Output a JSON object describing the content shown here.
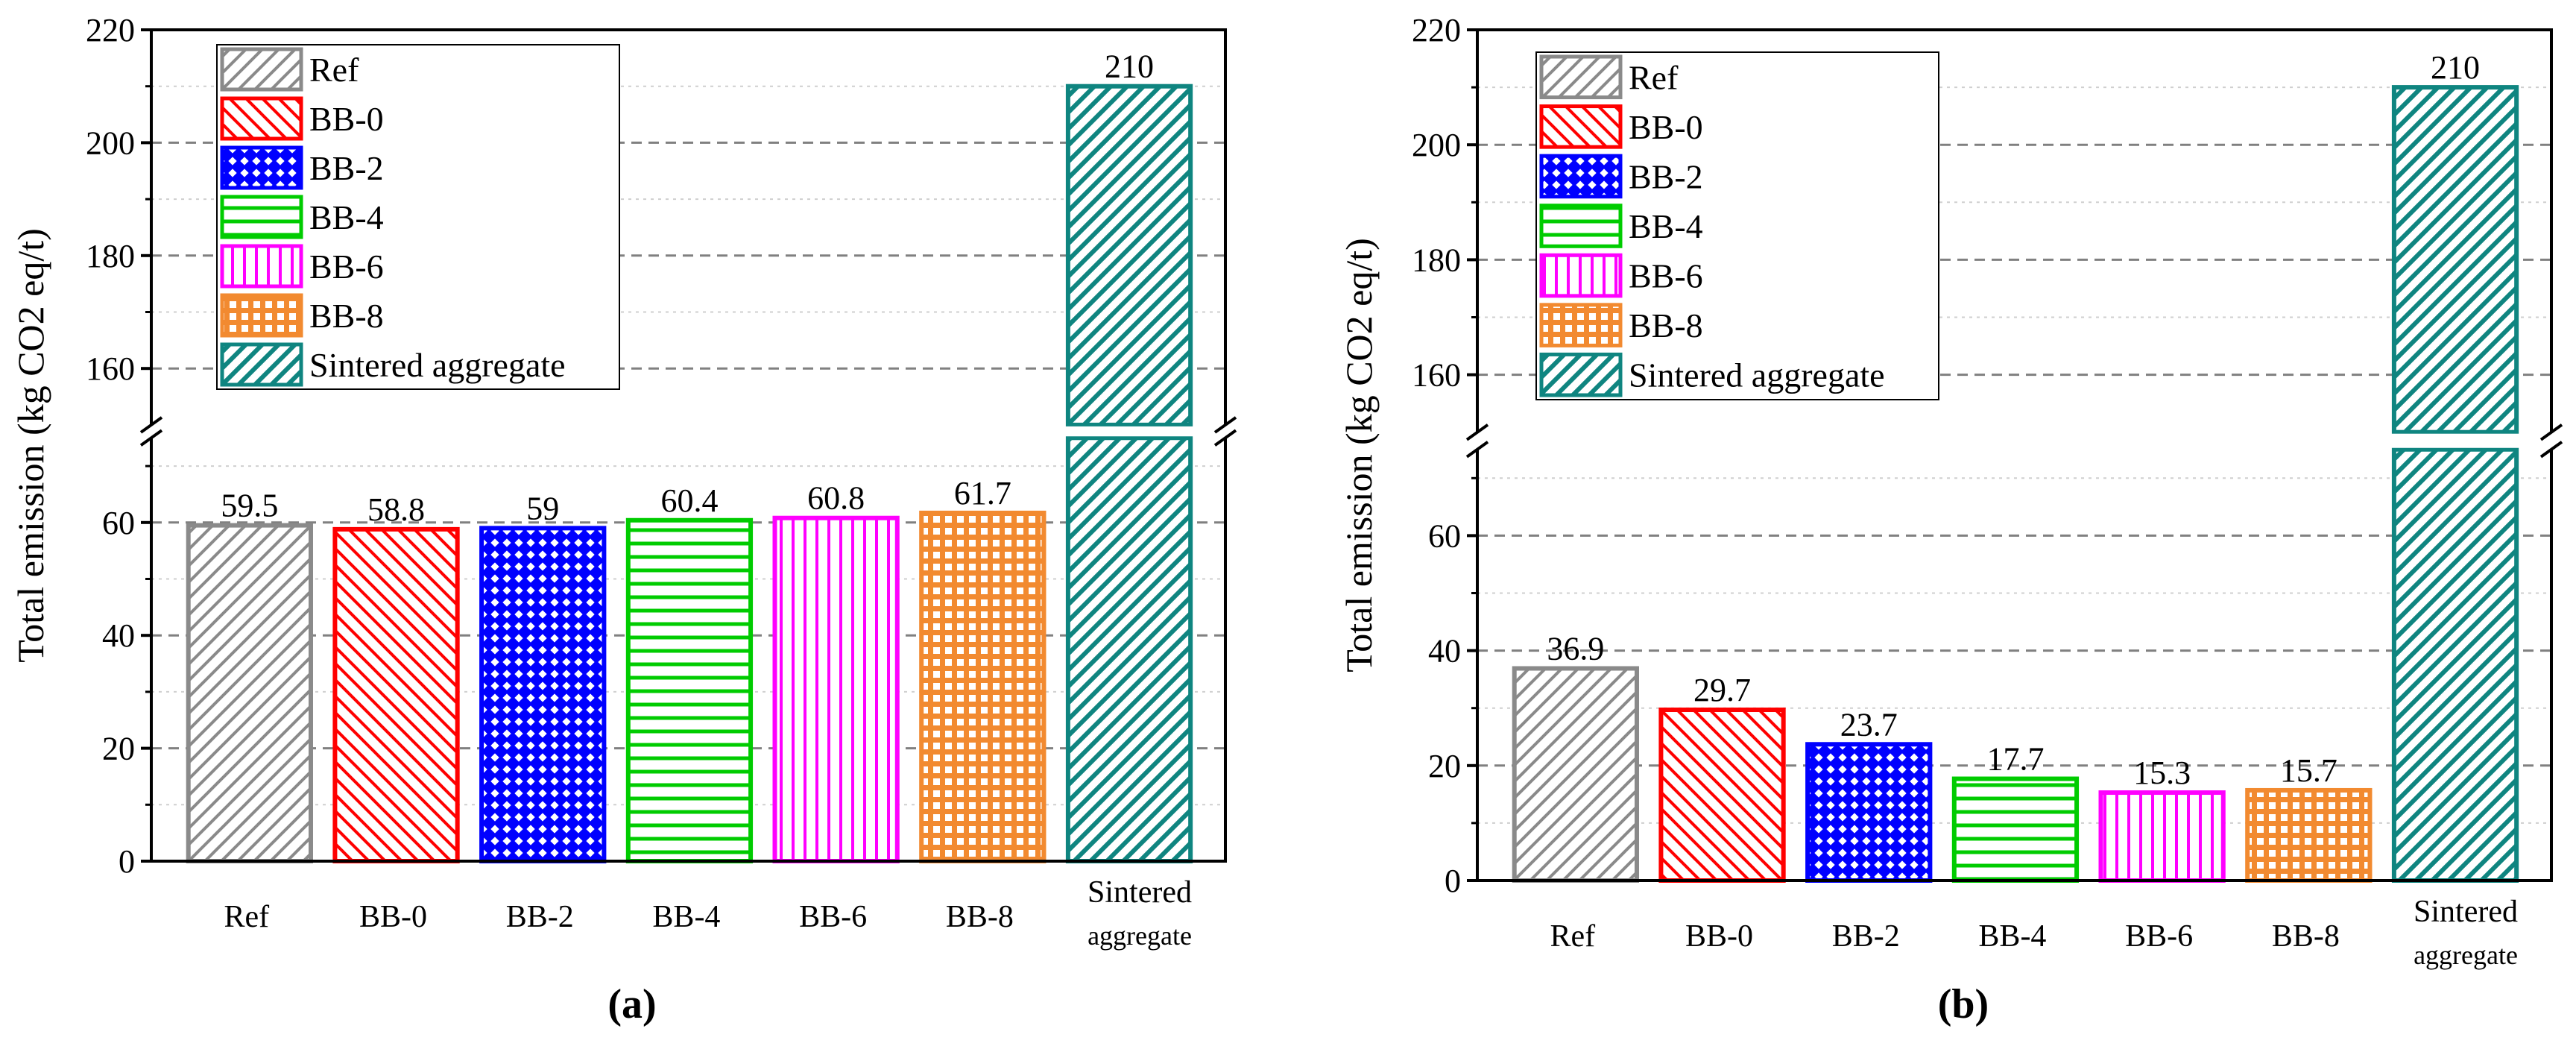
{
  "chart_data": [
    {
      "type": "bar",
      "panel_label": "(a)",
      "panel_letter": "a",
      "ylabel": "Total emission (kg CO2 eq/t)",
      "categories": [
        "Ref",
        "BB-0",
        "BB-2",
        "BB-4",
        "BB-6",
        "BB-8",
        "Sintered aggregate"
      ],
      "category_labels": [
        [
          "Ref"
        ],
        [
          "BB-0"
        ],
        [
          "BB-2"
        ],
        [
          "BB-4"
        ],
        [
          "BB-6"
        ],
        [
          "BB-8"
        ],
        [
          "Sintered",
          "aggregate"
        ]
      ],
      "values": [
        59.5,
        58.8,
        59,
        60.4,
        60.8,
        61.7,
        210
      ],
      "data_labels": [
        "59.5",
        "58.8",
        "59",
        "60.4",
        "60.8",
        "61.7",
        "210"
      ],
      "ylim_lower": [
        0,
        75
      ],
      "ylim_upper": [
        150,
        220
      ],
      "axis_break": true,
      "yticks": [
        0,
        20,
        40,
        60,
        160,
        180,
        200,
        220
      ],
      "grid": true,
      "legend_placement": "top-left",
      "legend": [
        "Ref",
        "BB-0",
        "BB-2",
        "BB-4",
        "BB-6",
        "BB-8",
        "Sintered aggregate"
      ]
    },
    {
      "type": "bar",
      "panel_label": "(b)",
      "panel_letter": "b",
      "ylabel": "Total emission (kg CO2 eq/t)",
      "categories": [
        "Ref",
        "BB-0",
        "BB-2",
        "BB-4",
        "BB-6",
        "BB-8",
        "Sintered aggregate"
      ],
      "category_labels": [
        [
          "Ref"
        ],
        [
          "BB-0"
        ],
        [
          "BB-2"
        ],
        [
          "BB-4"
        ],
        [
          "BB-6"
        ],
        [
          "BB-8"
        ],
        [
          "Sintered",
          "aggregate"
        ]
      ],
      "values": [
        36.9,
        29.7,
        23.7,
        17.7,
        15.3,
        15.7,
        210
      ],
      "data_labels": [
        "36.9",
        "29.7",
        "23.7",
        "17.7",
        "15.3",
        "15.7",
        "210"
      ],
      "ylim_lower": [
        0,
        75
      ],
      "ylim_upper": [
        150,
        220
      ],
      "axis_break": true,
      "yticks": [
        0,
        20,
        40,
        60,
        160,
        180,
        200,
        220
      ],
      "grid": true,
      "legend_placement": "top-left",
      "legend": [
        "Ref",
        "BB-0",
        "BB-2",
        "BB-4",
        "BB-6",
        "BB-8",
        "Sintered aggregate"
      ]
    }
  ],
  "series_styles": [
    {
      "name": "Ref",
      "color": "#8a8a8a",
      "pattern": "diag-up"
    },
    {
      "name": "BB-0",
      "color": "#ff0000",
      "pattern": "diag-down"
    },
    {
      "name": "BB-2",
      "color": "#0000ff",
      "pattern": "cross"
    },
    {
      "name": "BB-4",
      "color": "#00cc00",
      "pattern": "horizontal"
    },
    {
      "name": "BB-6",
      "color": "#ff00ff",
      "pattern": "vertical"
    },
    {
      "name": "BB-8",
      "color": "#f28a30",
      "pattern": "grid"
    },
    {
      "name": "Sintered aggregate",
      "color": "#0f8580",
      "pattern": "diag-up-thick"
    }
  ]
}
